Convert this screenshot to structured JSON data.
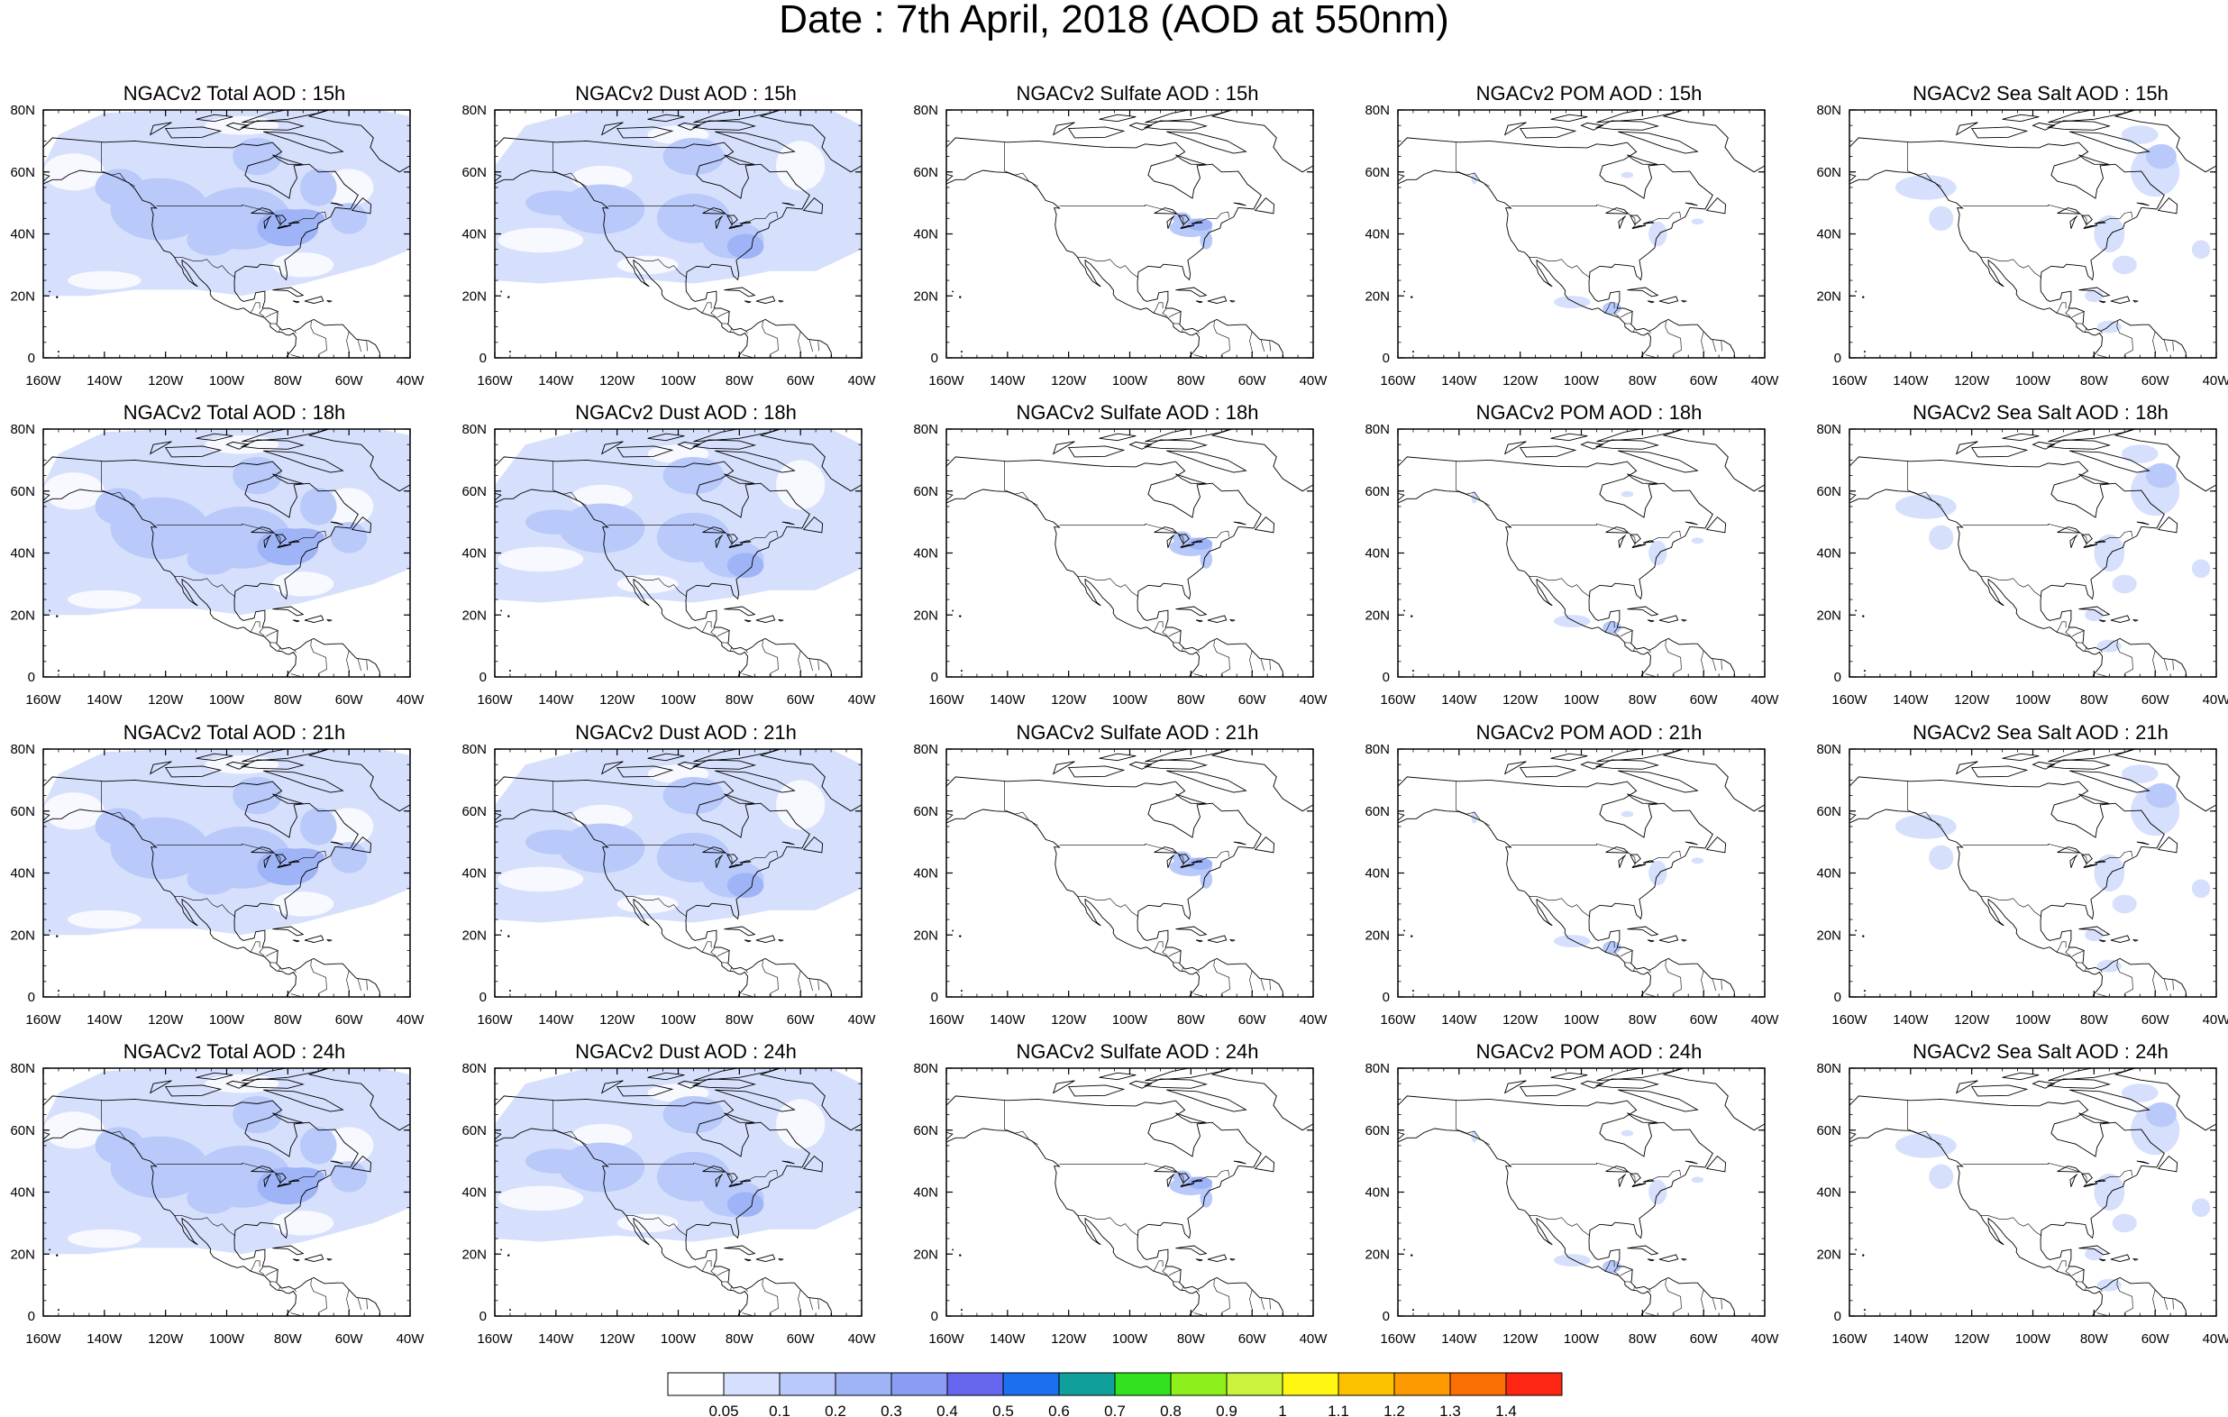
{
  "main_title": "Date : 7th April, 2018 (AOD at 550nm)",
  "axes": {
    "x_ticks": [
      "160W",
      "140W",
      "120W",
      "100W",
      "80W",
      "60W",
      "40W"
    ],
    "y_ticks": [
      "80N",
      "60N",
      "40N",
      "20N",
      "0"
    ],
    "lon_range": [
      -160,
      -40
    ],
    "lat_range": [
      0,
      80
    ]
  },
  "panels": [
    [
      {
        "title": "NGACv2 Total AOD : 15h",
        "field": "total",
        "hour": 15
      },
      {
        "title": "NGACv2 Dust AOD : 15h",
        "field": "dust",
        "hour": 15
      },
      {
        "title": "NGACv2 Sulfate AOD : 15h",
        "field": "sulfate",
        "hour": 15
      },
      {
        "title": "NGACv2 POM AOD : 15h",
        "field": "pom",
        "hour": 15
      },
      {
        "title": "NGACv2 Sea Salt AOD : 15h",
        "field": "seasalt",
        "hour": 15
      }
    ],
    [
      {
        "title": "NGACv2 Total AOD : 18h",
        "field": "total",
        "hour": 18
      },
      {
        "title": "NGACv2 Dust AOD : 18h",
        "field": "dust",
        "hour": 18
      },
      {
        "title": "NGACv2 Sulfate AOD : 18h",
        "field": "sulfate",
        "hour": 18
      },
      {
        "title": "NGACv2 POM AOD : 18h",
        "field": "pom",
        "hour": 18
      },
      {
        "title": "NGACv2 Sea Salt AOD : 18h",
        "field": "seasalt",
        "hour": 18
      }
    ],
    [
      {
        "title": "NGACv2 Total AOD : 21h",
        "field": "total",
        "hour": 21
      },
      {
        "title": "NGACv2 Dust AOD : 21h",
        "field": "dust",
        "hour": 21
      },
      {
        "title": "NGACv2 Sulfate AOD : 21h",
        "field": "sulfate",
        "hour": 21
      },
      {
        "title": "NGACv2 POM AOD : 21h",
        "field": "pom",
        "hour": 21
      },
      {
        "title": "NGACv2 Sea Salt AOD : 21h",
        "field": "seasalt",
        "hour": 21
      }
    ],
    [
      {
        "title": "NGACv2 Total AOD : 24h",
        "field": "total",
        "hour": 24
      },
      {
        "title": "NGACv2 Dust AOD : 24h",
        "field": "dust",
        "hour": 24
      },
      {
        "title": "NGACv2 Sulfate AOD : 24h",
        "field": "sulfate",
        "hour": 24
      },
      {
        "title": "NGACv2 POM AOD : 24h",
        "field": "pom",
        "hour": 24
      },
      {
        "title": "NGACv2 Sea Salt  AOD : 24h",
        "field": "seasalt",
        "hour": 24
      }
    ]
  ],
  "colorbar": {
    "labels": [
      "0.05",
      "0.1",
      "0.2",
      "0.3",
      "0.4",
      "0.5",
      "0.6",
      "0.7",
      "0.8",
      "0.9",
      "1",
      "1.1",
      "1.2",
      "1.3",
      "1.4"
    ],
    "colors": [
      "#ffffff",
      "#d6e0fc",
      "#b8c9fa",
      "#9fb4f7",
      "#8a9df5",
      "#6666ee",
      "#1c6ff0",
      "#119f9b",
      "#33e21f",
      "#8ef01a",
      "#c9f33d",
      "#fff712",
      "#fdc100",
      "#fc9a00",
      "#fb6e04",
      "#fc2613"
    ]
  }
}
